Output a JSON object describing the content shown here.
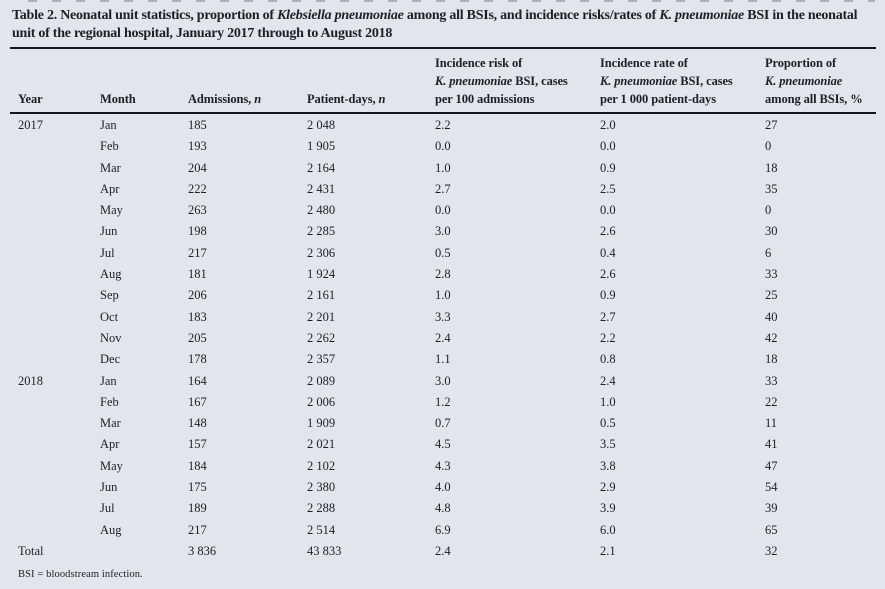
{
  "page": {
    "background_color": "#e4e5ea",
    "text_color": "#1e1e28",
    "rule_color": "#15151c"
  },
  "table": {
    "title_segments": [
      {
        "t": "Table 2. Neonatal unit statistics, proportion of "
      },
      {
        "t": "Klebsiella pneumoniae",
        "i": true
      },
      {
        "t": " among all BSIs, and incidence risks/rates of "
      },
      {
        "t": "K. pneumoniae",
        "i": true
      },
      {
        "t": " BSI in the neonatal unit of the regional hospital, January 2017 through to August 2018"
      }
    ],
    "columns": [
      {
        "id": "year",
        "lines": [
          [
            {
              "t": "Year"
            }
          ]
        ]
      },
      {
        "id": "month",
        "lines": [
          [
            {
              "t": "Month"
            }
          ]
        ]
      },
      {
        "id": "admissions",
        "lines": [
          [
            {
              "t": "Admissions, "
            },
            {
              "t": "n",
              "i": true
            }
          ]
        ]
      },
      {
        "id": "patient-days",
        "lines": [
          [
            {
              "t": "Patient-days, "
            },
            {
              "t": "n",
              "i": true
            }
          ]
        ]
      },
      {
        "id": "incidence-risk",
        "lines": [
          [
            {
              "t": "Incidence risk of"
            }
          ],
          [
            {
              "t": "K. pneumoniae",
              "i": true
            },
            {
              "t": " BSI, cases"
            }
          ],
          [
            {
              "t": "per 100 admissions"
            }
          ]
        ]
      },
      {
        "id": "incidence-rate",
        "lines": [
          [
            {
              "t": "Incidence rate of"
            }
          ],
          [
            {
              "t": "K. pneumoniae",
              "i": true
            },
            {
              "t": " BSI, cases"
            }
          ],
          [
            {
              "t": "per 1 000 patient-days"
            }
          ]
        ]
      },
      {
        "id": "proportion",
        "lines": [
          [
            {
              "t": "Proportion of"
            }
          ],
          [
            {
              "t": "K. pneumoniae",
              "i": true
            }
          ],
          [
            {
              "t": "among all BSIs, %"
            }
          ]
        ]
      }
    ],
    "rows": [
      [
        "2017",
        "Jan",
        "185",
        "2 048",
        "2.2",
        "2.0",
        "27"
      ],
      [
        "",
        "Feb",
        "193",
        "1 905",
        "0.0",
        "0.0",
        "0"
      ],
      [
        "",
        "Mar",
        "204",
        "2 164",
        "1.0",
        "0.9",
        "18"
      ],
      [
        "",
        "Apr",
        "222",
        "2 431",
        "2.7",
        "2.5",
        "35"
      ],
      [
        "",
        "May",
        "263",
        "2 480",
        "0.0",
        "0.0",
        "0"
      ],
      [
        "",
        "Jun",
        "198",
        "2 285",
        "3.0",
        "2.6",
        "30"
      ],
      [
        "",
        "Jul",
        "217",
        "2 306",
        "0.5",
        "0.4",
        "6"
      ],
      [
        "",
        "Aug",
        "181",
        "1 924",
        "2.8",
        "2.6",
        "33"
      ],
      [
        "",
        "Sep",
        "206",
        "2 161",
        "1.0",
        "0.9",
        "25"
      ],
      [
        "",
        "Oct",
        "183",
        "2 201",
        "3.3",
        "2.7",
        "40"
      ],
      [
        "",
        "Nov",
        "205",
        "2 262",
        "2.4",
        "2.2",
        "42"
      ],
      [
        "",
        "Dec",
        "178",
        "2 357",
        "1.1",
        "0.8",
        "18"
      ],
      [
        "2018",
        "Jan",
        "164",
        "2 089",
        "3.0",
        "2.4",
        "33"
      ],
      [
        "",
        "Feb",
        "167",
        "2 006",
        "1.2",
        "1.0",
        "22"
      ],
      [
        "",
        "Mar",
        "148",
        "1 909",
        "0.7",
        "0.5",
        "11"
      ],
      [
        "",
        "Apr",
        "157",
        "2 021",
        "4.5",
        "3.5",
        "41"
      ],
      [
        "",
        "May",
        "184",
        "2 102",
        "4.3",
        "3.8",
        "47"
      ],
      [
        "",
        "Jun",
        "175",
        "2 380",
        "4.0",
        "2.9",
        "54"
      ],
      [
        "",
        "Jul",
        "189",
        "2 288",
        "4.8",
        "3.9",
        "39"
      ],
      [
        "",
        "Aug",
        "217",
        "2 514",
        "6.9",
        "6.0",
        "65"
      ]
    ],
    "total_row": [
      "Total",
      "",
      "3 836",
      "43 833",
      "2.4",
      "2.1",
      "32"
    ],
    "footnote": "BSI = bloodstream infection."
  }
}
